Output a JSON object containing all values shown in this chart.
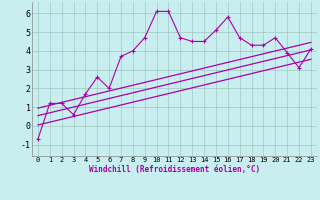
{
  "xlabel": "Windchill (Refroidissement éolien,°C)",
  "bg_color": "#c8eef0",
  "grid_color": "#a0c8c0",
  "line_color": "#aa00aa",
  "xlim": [
    -0.5,
    23.5
  ],
  "ylim": [
    -1.6,
    6.6
  ],
  "xticks": [
    0,
    1,
    2,
    3,
    4,
    5,
    6,
    7,
    8,
    9,
    10,
    11,
    12,
    13,
    14,
    15,
    16,
    17,
    18,
    19,
    20,
    21,
    22,
    23
  ],
  "yticks": [
    -1,
    0,
    1,
    2,
    3,
    4,
    5,
    6
  ],
  "scatter_x": [
    0,
    1,
    2,
    3,
    4,
    5,
    6,
    7,
    8,
    9,
    10,
    11,
    12,
    13,
    14,
    15,
    16,
    17,
    18,
    19,
    20,
    21,
    22,
    23
  ],
  "scatter_y": [
    -0.7,
    1.2,
    1.2,
    0.6,
    1.7,
    2.6,
    2.0,
    3.7,
    4.0,
    4.7,
    6.1,
    6.1,
    4.7,
    4.5,
    4.5,
    5.1,
    5.8,
    4.7,
    4.3,
    4.3,
    4.7,
    3.9,
    3.1,
    4.1
  ],
  "reg_lines": [
    [
      0.55,
      4.05
    ],
    [
      0.05,
      3.55
    ],
    [
      0.95,
      4.45
    ]
  ]
}
